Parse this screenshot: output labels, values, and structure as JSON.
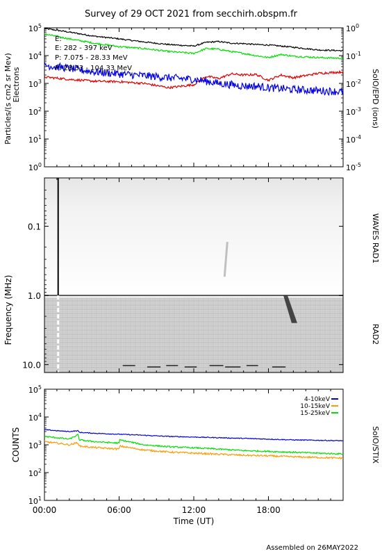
{
  "title": "Survey of 29 OCT 2021 from secchirh.obspm.fr",
  "footer": "Assembled on 26MAY2022",
  "x_axis": {
    "label": "Time (UT)",
    "ticks": [
      "00:00",
      "06:00",
      "12:00",
      "18:00"
    ]
  },
  "chart_data": [
    {
      "type": "line",
      "panel": "epd",
      "ylabel": "Particles/(s cm2 sr Mev)",
      "ylabel2": "Electrons",
      "right_label": "SoIO/EPD (ions)",
      "yscale": "log",
      "ylim": [
        1,
        100000
      ],
      "right_ylim": [
        1e-05,
        1
      ],
      "y_ticks": [
        "10^0",
        "10^1",
        "10^2",
        "10^3",
        "10^4",
        "10^5"
      ],
      "right_ticks": [
        "10^-5",
        "10^-4",
        "10^-3",
        "10^-2",
        "10^-1",
        "10^0"
      ],
      "x_hours": [
        0,
        2,
        4,
        6,
        8,
        10,
        12,
        13,
        14,
        15,
        16,
        17,
        18,
        19,
        20,
        22,
        24
      ],
      "series": [
        {
          "name": "",
          "color": "#000000",
          "values": [
            95000,
            70000,
            50000,
            40000,
            31000,
            25000,
            22000,
            30000,
            32000,
            28000,
            27000,
            25000,
            24000,
            22000,
            20000,
            16000,
            15000
          ]
        },
        {
          "name": "",
          "color": "#00e000",
          "values": [
            60000,
            40000,
            28000,
            21000,
            18000,
            14000,
            12000,
            18000,
            17000,
            14000,
            12000,
            10000,
            8500,
            11000,
            9500,
            8500,
            8000
          ]
        },
        {
          "name": "E: 282 - 397 keV",
          "color": "#e00000",
          "values": [
            1700,
            1400,
            1200,
            1150,
            1000,
            700,
            900,
            1800,
            1500,
            2200,
            2000,
            2100,
            1300,
            2000,
            1600,
            2300,
            2600
          ]
        },
        {
          "name": "P: 7.075 - 28.33 MeV",
          "color": "#0000e0",
          "values": [
            4500,
            3500,
            2600,
            2200,
            1900,
            1600,
            1400,
            1200,
            1000,
            900,
            800,
            800,
            700,
            650,
            600,
            550,
            500
          ]
        }
      ],
      "legend_extra": [
        "E:",
        "P: 28.33 - 104.33 MeV"
      ]
    },
    {
      "type": "heatmap",
      "panel": "waves",
      "ylabel": "Frequency (MHz)",
      "yscale": "log",
      "ylim_mhz": [
        0.02,
        13
      ],
      "y_ticks": [
        "0.1",
        "1.0",
        "10.0"
      ],
      "right_labels": [
        "WAVES RAD1",
        "RAD2"
      ],
      "boundary_mhz": 1.0,
      "events": [
        {
          "kind": "vertical-line",
          "time_hour": 1.1
        },
        {
          "kind": "type-iii-burst",
          "time_start_hour": 19.2,
          "time_end_hour": 20.2,
          "freq_high_mhz": 1.0,
          "freq_low_mhz": 2.5
        },
        {
          "kind": "faint-drift",
          "time_hour": 14.5,
          "freq_mhz": 0.3
        }
      ]
    },
    {
      "type": "line",
      "panel": "stix",
      "ylabel": "COUNTS",
      "right_label": "SoIO/STIX",
      "yscale": "log",
      "ylim": [
        10,
        100000
      ],
      "y_ticks": [
        "10^1",
        "10^2",
        "10^3",
        "10^4",
        "10^5"
      ],
      "x_hours": [
        0,
        1,
        2,
        2.7,
        2.8,
        4,
        6,
        6.05,
        8,
        10,
        12,
        14,
        16,
        18,
        20,
        22,
        24
      ],
      "series": [
        {
          "name": "4-10keV",
          "color": "#0000e0",
          "values": [
            3500,
            3200,
            3000,
            3200,
            2800,
            2600,
            2400,
            2400,
            2200,
            2000,
            1900,
            1800,
            1700,
            1600,
            1500,
            1450,
            1400
          ]
        },
        {
          "name": "10-15keV",
          "color": "#ff9900",
          "values": [
            1300,
            1150,
            1000,
            1200,
            900,
            800,
            700,
            900,
            650,
            550,
            500,
            460,
            420,
            400,
            370,
            350,
            330
          ]
        },
        {
          "name": "15-25keV",
          "color": "#00e000",
          "values": [
            2000,
            1800,
            1600,
            2300,
            1500,
            1300,
            1150,
            1500,
            1000,
            850,
            780,
            700,
            620,
            580,
            540,
            500,
            470
          ]
        }
      ]
    }
  ]
}
